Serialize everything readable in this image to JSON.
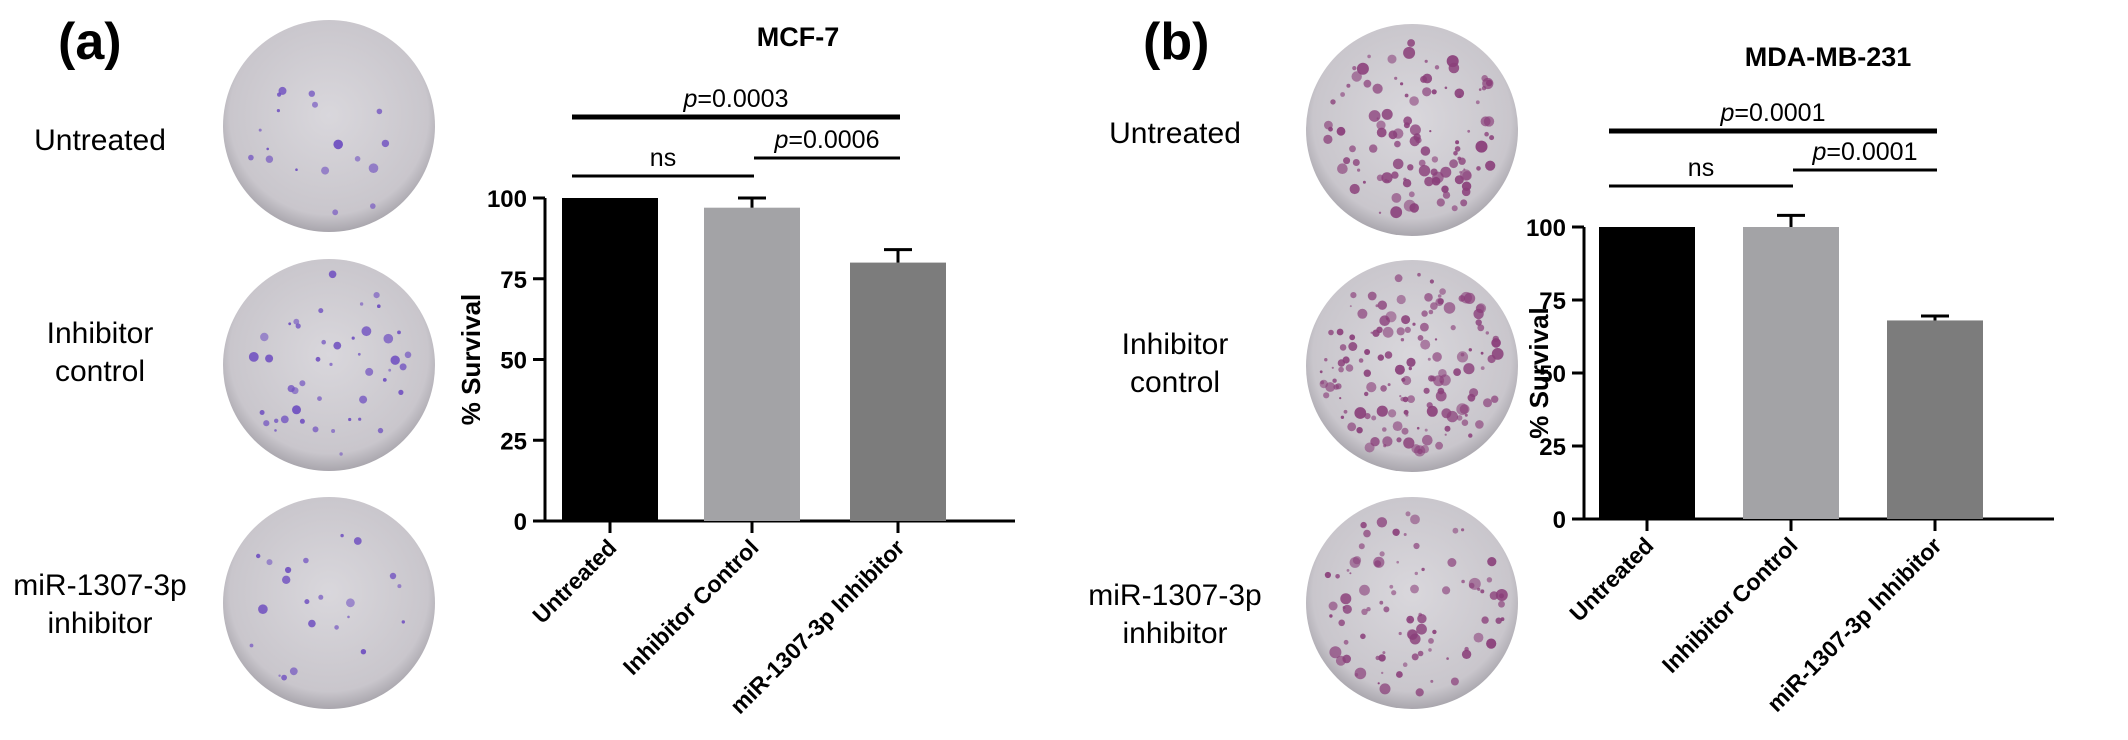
{
  "panels": [
    {
      "letter": "(a)",
      "row_labels": [
        {
          "line1": "Untreated",
          "line2": ""
        },
        {
          "line1": "Inhibitor",
          "line2": "control"
        },
        {
          "line1": "miR-1307-3p",
          "line2": "inhibitor"
        }
      ],
      "plate_stain": "violet",
      "colony_color": "#6f4fc0"
    },
    {
      "letter": "(b)",
      "row_labels": [
        {
          "line1": "Untreated",
          "line2": ""
        },
        {
          "line1": "Inhibitor",
          "line2": "control"
        },
        {
          "line1": "miR-1307-3p",
          "line2": "inhibitor"
        }
      ],
      "plate_stain": "magenta",
      "colony_color": "#8a3f7a"
    }
  ],
  "chart_data": [
    {
      "type": "bar",
      "title": "MCF-7",
      "ylabel": "% Survival",
      "ylim": [
        0,
        100
      ],
      "yticks": [
        "0",
        "25",
        "50",
        "75",
        "100"
      ],
      "categories": [
        "Untreated",
        "Inhibitor Control",
        "miR-1307-3p Inhibitor"
      ],
      "values": [
        100,
        97,
        80
      ],
      "errors": [
        0,
        3,
        4
      ],
      "colors": [
        "#000000",
        "#a3a3a6",
        "#7c7c7c"
      ],
      "annotations": [
        {
          "from": 0,
          "to": 2,
          "p_prefix": "p",
          "text": "=0.0003"
        },
        {
          "from": 0,
          "to": 1,
          "p_prefix": "",
          "text": "ns"
        },
        {
          "from": 1,
          "to": 2,
          "p_prefix": "p",
          "text": "=0.0006"
        }
      ]
    },
    {
      "type": "bar",
      "title": "MDA-MB-231",
      "ylabel": "% Survival",
      "ylim": [
        0,
        100
      ],
      "yticks": [
        "0",
        "25",
        "50",
        "75",
        "100"
      ],
      "categories": [
        "Untreated",
        "Inhibitor Control",
        "miR-1307-3p Inhibitor"
      ],
      "values": [
        100,
        100,
        68
      ],
      "errors": [
        0,
        4,
        1.5
      ],
      "colors": [
        "#000000",
        "#a3a3a6",
        "#7c7c7c"
      ],
      "annotations": [
        {
          "from": 0,
          "to": 2,
          "p_prefix": "p",
          "text": "=0.0001"
        },
        {
          "from": 0,
          "to": 1,
          "p_prefix": "",
          "text": "ns"
        },
        {
          "from": 1,
          "to": 2,
          "p_prefix": "p",
          "text": "=0.0001"
        }
      ]
    }
  ]
}
